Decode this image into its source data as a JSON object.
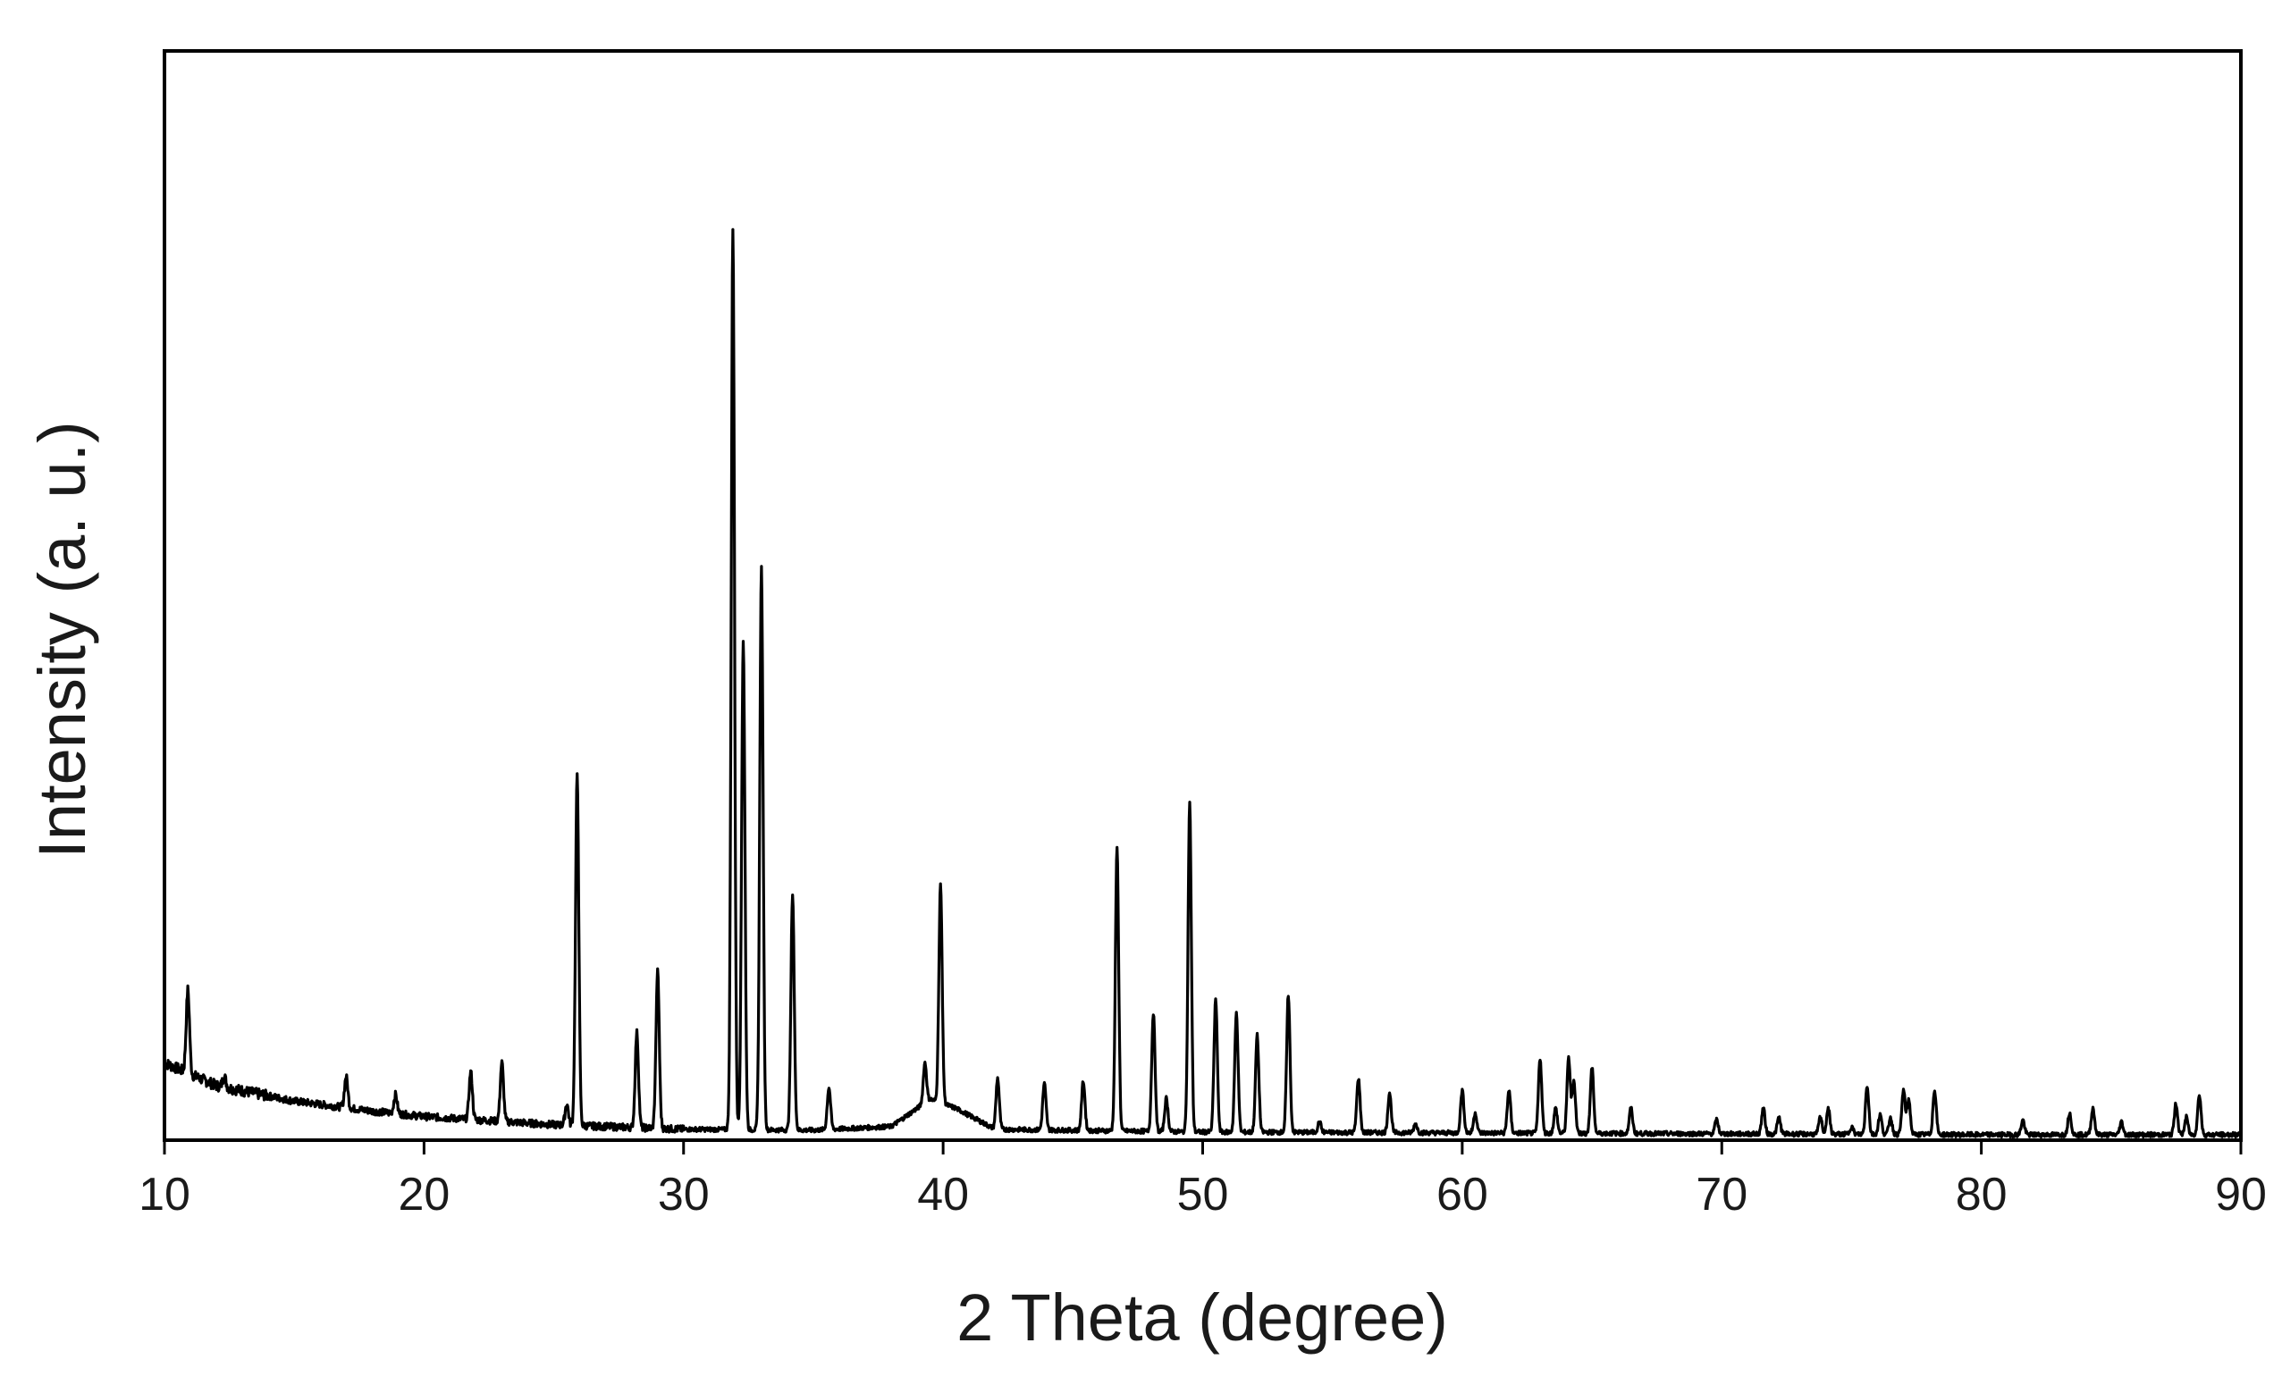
{
  "chart_data": {
    "type": "line",
    "title": "",
    "xlabel": "2 Theta (degree)",
    "ylabel": "Intensity (a. u.)",
    "xlim": [
      10,
      90
    ],
    "ylim": [
      0,
      1
    ],
    "x_ticks": [
      10,
      20,
      30,
      40,
      50,
      60,
      70,
      80,
      90
    ],
    "y_ticks": [],
    "y_tick_labels_shown": false,
    "grid": false,
    "legend": "none",
    "line_color": "#000000",
    "background": {
      "description": "baseline decays from about 0.085 at 10 degrees to about 0.01 near 30 degrees, with a broad hump near 40 degrees",
      "points": [
        [
          10,
          0.085
        ],
        [
          12,
          0.06
        ],
        [
          15,
          0.043
        ],
        [
          18,
          0.032
        ],
        [
          20,
          0.026
        ],
        [
          25,
          0.017
        ],
        [
          30,
          0.012
        ],
        [
          35,
          0.011
        ],
        [
          38,
          0.015
        ],
        [
          39.5,
          0.045
        ],
        [
          40.5,
          0.035
        ],
        [
          42,
          0.012
        ],
        [
          50,
          0.009
        ],
        [
          60,
          0.008
        ],
        [
          70,
          0.007
        ],
        [
          80,
          0.006
        ],
        [
          90,
          0.006
        ]
      ]
    },
    "peaks": [
      {
        "x": 10.9,
        "y": 0.165
      },
      {
        "x": 12.3,
        "y": 0.07
      },
      {
        "x": 17.0,
        "y": 0.07
      },
      {
        "x": 18.9,
        "y": 0.05
      },
      {
        "x": 21.8,
        "y": 0.075
      },
      {
        "x": 23.0,
        "y": 0.085
      },
      {
        "x": 25.5,
        "y": 0.04
      },
      {
        "x": 25.9,
        "y": 0.4
      },
      {
        "x": 28.2,
        "y": 0.118
      },
      {
        "x": 29.0,
        "y": 0.185
      },
      {
        "x": 31.9,
        "y": 1.0
      },
      {
        "x": 32.3,
        "y": 0.55
      },
      {
        "x": 33.0,
        "y": 0.63
      },
      {
        "x": 34.2,
        "y": 0.27
      },
      {
        "x": 35.6,
        "y": 0.058
      },
      {
        "x": 39.3,
        "y": 0.085
      },
      {
        "x": 39.9,
        "y": 0.28
      },
      {
        "x": 42.1,
        "y": 0.068
      },
      {
        "x": 43.9,
        "y": 0.062
      },
      {
        "x": 45.4,
        "y": 0.065
      },
      {
        "x": 46.7,
        "y": 0.32
      },
      {
        "x": 48.1,
        "y": 0.14
      },
      {
        "x": 48.6,
        "y": 0.046
      },
      {
        "x": 49.5,
        "y": 0.37
      },
      {
        "x": 50.5,
        "y": 0.155
      },
      {
        "x": 51.3,
        "y": 0.14
      },
      {
        "x": 52.1,
        "y": 0.115
      },
      {
        "x": 53.3,
        "y": 0.16
      },
      {
        "x": 54.5,
        "y": 0.02
      },
      {
        "x": 56.0,
        "y": 0.068
      },
      {
        "x": 57.2,
        "y": 0.052
      },
      {
        "x": 58.2,
        "y": 0.018
      },
      {
        "x": 60.0,
        "y": 0.055
      },
      {
        "x": 60.5,
        "y": 0.03
      },
      {
        "x": 61.8,
        "y": 0.055
      },
      {
        "x": 63.0,
        "y": 0.09
      },
      {
        "x": 63.6,
        "y": 0.035
      },
      {
        "x": 64.1,
        "y": 0.09
      },
      {
        "x": 64.3,
        "y": 0.065
      },
      {
        "x": 65.0,
        "y": 0.08
      },
      {
        "x": 66.5,
        "y": 0.035
      },
      {
        "x": 69.8,
        "y": 0.022
      },
      {
        "x": 71.6,
        "y": 0.035
      },
      {
        "x": 72.2,
        "y": 0.025
      },
      {
        "x": 73.8,
        "y": 0.025
      },
      {
        "x": 74.1,
        "y": 0.035
      },
      {
        "x": 75.0,
        "y": 0.015
      },
      {
        "x": 75.6,
        "y": 0.06
      },
      {
        "x": 76.1,
        "y": 0.028
      },
      {
        "x": 76.5,
        "y": 0.025
      },
      {
        "x": 77.0,
        "y": 0.055
      },
      {
        "x": 77.2,
        "y": 0.045
      },
      {
        "x": 78.2,
        "y": 0.055
      },
      {
        "x": 81.6,
        "y": 0.022
      },
      {
        "x": 83.4,
        "y": 0.03
      },
      {
        "x": 84.3,
        "y": 0.035
      },
      {
        "x": 85.4,
        "y": 0.02
      },
      {
        "x": 87.5,
        "y": 0.04
      },
      {
        "x": 87.9,
        "y": 0.025
      },
      {
        "x": 88.4,
        "y": 0.05
      }
    ]
  }
}
